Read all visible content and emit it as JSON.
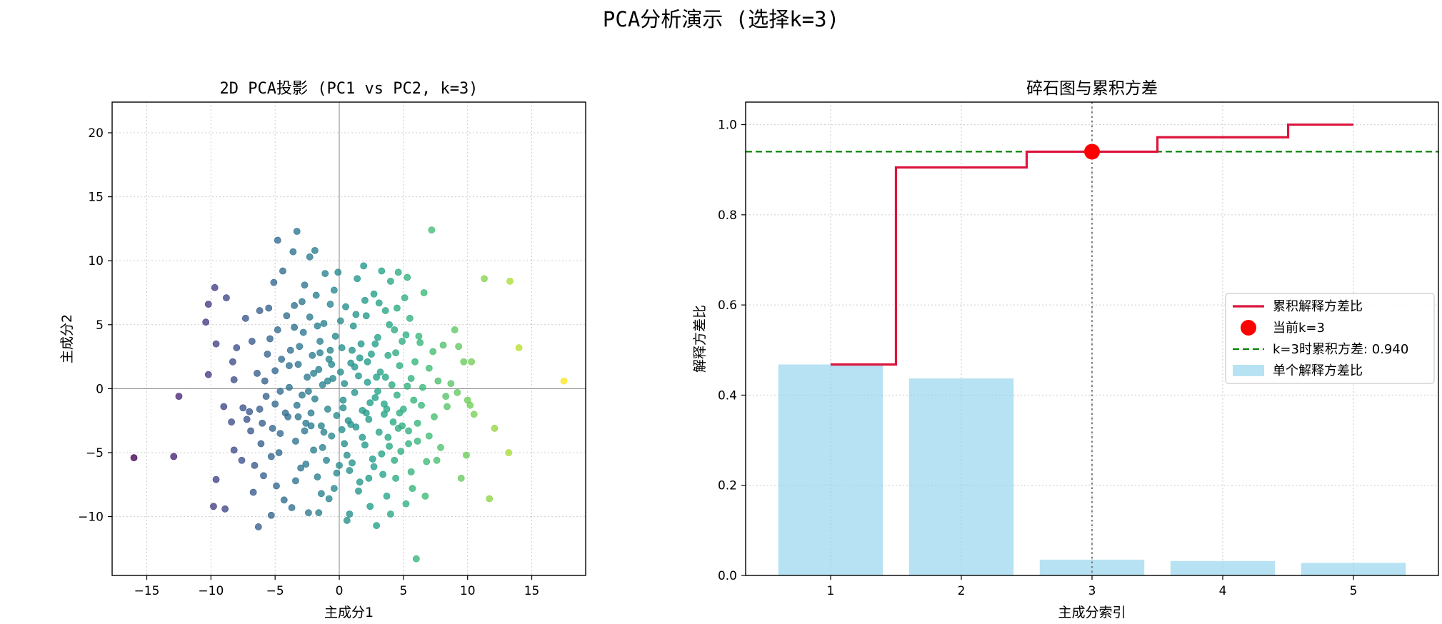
{
  "figure": {
    "suptitle": "PCA分析演示 (选择k=3)"
  },
  "chart_data": [
    {
      "type": "scatter",
      "title": "2D PCA投影 (PC1 vs PC2, k=3)",
      "xlabel": "主成分1",
      "ylabel": "主成分2",
      "xlim": [
        -17.7,
        19.2
      ],
      "ylim": [
        -14.6,
        22.4
      ],
      "xticks": [
        -15,
        -10,
        -5,
        0,
        5,
        10,
        15
      ],
      "yticks": [
        -10,
        -5,
        0,
        5,
        10,
        15,
        20
      ],
      "grid": true,
      "colormap": "viridis (by PC1)",
      "note": "approx. 300 points; values estimated from the plot",
      "points": [
        [
          -16.0,
          -5.4
        ],
        [
          -12.9,
          -5.3
        ],
        [
          -12.5,
          -0.6
        ],
        [
          -9.7,
          7.9
        ],
        [
          -8.8,
          7.1
        ],
        [
          -10.2,
          6.6
        ],
        [
          -10.4,
          5.2
        ],
        [
          -9.6,
          3.5
        ],
        [
          -10.2,
          1.1
        ],
        [
          -9.0,
          -1.4
        ],
        [
          -9.6,
          -7.1
        ],
        [
          -9.8,
          -9.2
        ],
        [
          -8.9,
          -9.4
        ],
        [
          -8.2,
          -4.8
        ],
        [
          -8.4,
          -2.6
        ],
        [
          -8.2,
          0.7
        ],
        [
          -8.3,
          2.1
        ],
        [
          -7.5,
          -1.5
        ],
        [
          -7.2,
          -2.4
        ],
        [
          -7.0,
          -1.8
        ],
        [
          -6.8,
          3.7
        ],
        [
          -6.6,
          -6.0
        ],
        [
          -6.3,
          -10.8
        ],
        [
          -6.1,
          -4.3
        ],
        [
          -6.0,
          -2.7
        ],
        [
          -5.8,
          0.6
        ],
        [
          -5.6,
          2.7
        ],
        [
          -5.5,
          6.3
        ],
        [
          -6.2,
          6.1
        ],
        [
          -5.3,
          -9.9
        ],
        [
          -5.2,
          -3.1
        ],
        [
          -5.0,
          -1.2
        ],
        [
          -5.0,
          1.4
        ],
        [
          -4.8,
          4.6
        ],
        [
          -4.7,
          -5.0
        ],
        [
          -4.6,
          -0.2
        ],
        [
          -4.5,
          2.3
        ],
        [
          -4.4,
          9.2
        ],
        [
          -4.8,
          11.6
        ],
        [
          -4.3,
          -8.7
        ],
        [
          -4.0,
          -2.2
        ],
        [
          -3.9,
          0.1
        ],
        [
          -3.8,
          3.0
        ],
        [
          -3.6,
          10.7
        ],
        [
          -3.5,
          6.5
        ],
        [
          -3.4,
          -4.1
        ],
        [
          -3.3,
          -1.3
        ],
        [
          -3.2,
          1.9
        ],
        [
          -3.3,
          12.3
        ],
        [
          -3.0,
          -6.2
        ],
        [
          -2.9,
          -0.5
        ],
        [
          -2.8,
          4.4
        ],
        [
          -2.7,
          8.1
        ],
        [
          -2.6,
          -2.7
        ],
        [
          -2.5,
          0.9
        ],
        [
          -2.4,
          -9.7
        ],
        [
          -2.3,
          5.6
        ],
        [
          -2.2,
          -1.9
        ],
        [
          -2.3,
          10.3
        ],
        [
          -2.1,
          2.6
        ],
        [
          -2.0,
          -4.8
        ],
        [
          -1.9,
          -0.8
        ],
        [
          -1.8,
          7.3
        ],
        [
          -1.7,
          -6.9
        ],
        [
          -1.6,
          1.5
        ],
        [
          -1.6,
          -9.7
        ],
        [
          -1.5,
          3.7
        ],
        [
          -1.4,
          -2.9
        ],
        [
          -1.3,
          0.3
        ],
        [
          -1.2,
          5.1
        ],
        [
          -1.1,
          9.0
        ],
        [
          -1.0,
          -5.6
        ],
        [
          -0.9,
          -1.6
        ],
        [
          -0.8,
          2.3
        ],
        [
          -0.7,
          6.6
        ],
        [
          -0.6,
          -3.7
        ],
        [
          -0.5,
          0.8
        ],
        [
          -0.4,
          -7.8
        ],
        [
          -0.3,
          4.1
        ],
        [
          -0.2,
          -2.1
        ],
        [
          -0.1,
          9.1
        ],
        [
          0.0,
          -6.0
        ],
        [
          0.1,
          1.3
        ],
        [
          0.2,
          3.2
        ],
        [
          0.3,
          -0.9
        ],
        [
          0.4,
          -4.3
        ],
        [
          0.5,
          6.4
        ],
        [
          0.6,
          -10.3
        ],
        [
          0.7,
          -2.5
        ],
        [
          0.8,
          -9.8
        ],
        [
          0.9,
          2.0
        ],
        [
          1.0,
          -5.8
        ],
        [
          1.1,
          4.9
        ],
        [
          1.2,
          -0.3
        ],
        [
          1.3,
          -3.0
        ],
        [
          1.4,
          8.6
        ],
        [
          1.5,
          1.0
        ],
        [
          1.6,
          -7.3
        ],
        [
          1.7,
          3.5
        ],
        [
          1.8,
          -1.7
        ],
        [
          1.9,
          9.6
        ],
        [
          2.0,
          -4.4
        ],
        [
          2.1,
          5.7
        ],
        [
          2.2,
          0.5
        ],
        [
          2.3,
          -2.4
        ],
        [
          2.4,
          -9.2
        ],
        [
          2.5,
          2.7
        ],
        [
          2.6,
          -5.5
        ],
        [
          2.7,
          7.4
        ],
        [
          2.8,
          -0.7
        ],
        [
          2.9,
          -10.7
        ],
        [
          3.0,
          4.0
        ],
        [
          3.1,
          -3.4
        ],
        [
          3.2,
          1.3
        ],
        [
          3.3,
          9.2
        ],
        [
          3.4,
          -6.7
        ],
        [
          3.5,
          -1.2
        ],
        [
          3.6,
          6.1
        ],
        [
          3.7,
          -8.4
        ],
        [
          3.8,
          2.6
        ],
        [
          3.9,
          -4.5
        ],
        [
          4.0,
          8.4
        ],
        [
          4.1,
          0.3
        ],
        [
          4.2,
          -2.6
        ],
        [
          4.3,
          4.6
        ],
        [
          4.4,
          -7.0
        ],
        [
          4.5,
          -0.5
        ],
        [
          4.6,
          9.1
        ],
        [
          4.7,
          1.8
        ],
        [
          4.8,
          -4.9
        ],
        [
          4.9,
          3.7
        ],
        [
          5.0,
          -1.6
        ],
        [
          5.1,
          7.1
        ],
        [
          5.2,
          -9.0
        ],
        [
          5.3,
          0.2
        ],
        [
          5.4,
          -3.3
        ],
        [
          5.5,
          5.5
        ],
        [
          5.6,
          -6.5
        ],
        [
          5.8,
          -0.9
        ],
        [
          5.9,
          2.1
        ],
        [
          6.0,
          -13.3
        ],
        [
          6.1,
          -4.1
        ],
        [
          6.2,
          4.1
        ],
        [
          6.4,
          -1.3
        ],
        [
          6.6,
          7.5
        ],
        [
          6.8,
          -5.7
        ],
        [
          7.0,
          1.6
        ],
        [
          7.2,
          12.4
        ],
        [
          7.4,
          -2.2
        ],
        [
          7.7,
          0.6
        ],
        [
          7.9,
          -4.6
        ],
        [
          8.1,
          3.4
        ],
        [
          8.4,
          -1.4
        ],
        [
          8.7,
          0.4
        ],
        [
          9.0,
          4.6
        ],
        [
          9.2,
          -0.3
        ],
        [
          9.5,
          -7.0
        ],
        [
          9.7,
          2.1
        ],
        [
          9.9,
          -5.2
        ],
        [
          10.0,
          -0.9
        ],
        [
          10.2,
          -1.3
        ],
        [
          10.3,
          2.1
        ],
        [
          10.5,
          -2.0
        ],
        [
          11.3,
          8.6
        ],
        [
          11.7,
          -8.6
        ],
        [
          12.1,
          -3.1
        ],
        [
          13.2,
          -5.0
        ],
        [
          13.3,
          8.4
        ],
        [
          14.0,
          3.2
        ],
        [
          17.5,
          0.6
        ],
        [
          -7.3,
          5.5
        ],
        [
          -6.9,
          -3.3
        ],
        [
          -6.4,
          1.2
        ],
        [
          -5.9,
          -6.8
        ],
        [
          -5.4,
          3.9
        ],
        [
          -4.9,
          -7.6
        ],
        [
          -4.1,
          5.7
        ],
        [
          -3.7,
          -9.3
        ],
        [
          -3.1,
          3.3
        ],
        [
          -2.6,
          -5.9
        ],
        [
          -1.9,
          10.8
        ],
        [
          -1.3,
          -4.6
        ],
        [
          -0.8,
          -8.6
        ],
        [
          -0.4,
          7.7
        ],
        [
          0.3,
          -1.5
        ],
        [
          0.6,
          -5.2
        ],
        [
          1.0,
          3.0
        ],
        [
          1.5,
          -8.0
        ],
        [
          2.0,
          6.9
        ],
        [
          2.4,
          -1.1
        ],
        [
          2.8,
          3.5
        ],
        [
          3.3,
          -5.1
        ],
        [
          3.6,
          0.9
        ],
        [
          4.0,
          -9.8
        ],
        [
          4.4,
          2.8
        ],
        [
          4.9,
          -2.9
        ],
        [
          5.3,
          8.7
        ],
        [
          5.7,
          -7.8
        ],
        [
          6.3,
          3.6
        ],
        [
          7.0,
          -3.7
        ],
        [
          -8.0,
          3.2
        ],
        [
          -7.6,
          -5.6
        ],
        [
          -6.7,
          -8.1
        ],
        [
          -5.7,
          -0.6
        ],
        [
          -5.1,
          8.3
        ],
        [
          -4.6,
          -3.5
        ],
        [
          -3.9,
          1.8
        ],
        [
          -3.4,
          -7.2
        ],
        [
          -2.9,
          6.8
        ],
        [
          -2.4,
          -0.2
        ],
        [
          -1.7,
          4.9
        ],
        [
          -1.2,
          -3.4
        ],
        [
          -0.6,
          1.9
        ],
        [
          -0.2,
          -6.6
        ],
        [
          0.4,
          0.4
        ],
        [
          0.9,
          -2.8
        ],
        [
          1.3,
          5.8
        ],
        [
          1.8,
          -3.8
        ],
        [
          2.2,
          2.1
        ],
        [
          2.7,
          -6.1
        ],
        [
          3.1,
          6.7
        ],
        [
          3.5,
          -2.0
        ],
        [
          3.9,
          5.0
        ],
        [
          4.3,
          -5.6
        ],
        [
          4.7,
          -1.9
        ],
        [
          5.2,
          4.2
        ],
        [
          5.6,
          0.8
        ],
        [
          6.1,
          -2.7
        ],
        [
          6.7,
          -8.4
        ],
        [
          7.3,
          2.9
        ],
        [
          -6.2,
          -1.6
        ],
        [
          -5.3,
          -5.3
        ],
        [
          -4.2,
          -1.9
        ],
        [
          -3.5,
          4.8
        ],
        [
          -2.7,
          -3.3
        ],
        [
          -2.0,
          1.2
        ],
        [
          -1.4,
          -8.2
        ],
        [
          -0.7,
          3.0
        ],
        [
          0.1,
          5.3
        ],
        [
          0.8,
          -6.4
        ],
        [
          1.6,
          2.4
        ],
        [
          2.3,
          -7.0
        ],
        [
          3.0,
          -0.2
        ],
        [
          3.8,
          -3.8
        ],
        [
          4.5,
          6.3
        ],
        [
          5.4,
          -4.3
        ],
        [
          6.5,
          0.1
        ],
        [
          7.6,
          -5.6
        ],
        [
          8.3,
          -0.6
        ],
        [
          9.3,
          3.3
        ],
        [
          -3.2,
          -2.2
        ],
        [
          -2.2,
          -2.9
        ],
        [
          -1.5,
          2.8
        ],
        [
          -0.9,
          0.6
        ],
        [
          0.2,
          -3.2
        ],
        [
          1.2,
          1.7
        ],
        [
          2.1,
          -1.9
        ],
        [
          2.9,
          0.9
        ],
        [
          3.7,
          -1.6
        ],
        [
          4.6,
          -3.1
        ]
      ]
    },
    {
      "type": "bar+step",
      "title": "碎石图与累积方差",
      "xlabel": "主成分索引",
      "ylabel": "解释方差比",
      "xlim": [
        0.35,
        5.65
      ],
      "ylim": [
        0.0,
        1.05
      ],
      "categories": [
        "1",
        "2",
        "3",
        "4",
        "5"
      ],
      "yticks": [
        "0.0",
        "0.2",
        "0.4",
        "0.6",
        "0.8",
        "1.0"
      ],
      "grid": true,
      "series": [
        {
          "name": "单个解释方差比",
          "kind": "bar",
          "color": "#87CEEB",
          "values": [
            0.468,
            0.437,
            0.035,
            0.032,
            0.028
          ]
        },
        {
          "name": "累积解释方差比",
          "kind": "step",
          "color": "#DC143C",
          "values": [
            0.468,
            0.905,
            0.94,
            0.972,
            1.0
          ]
        }
      ],
      "marker": {
        "name": "当前k=3",
        "x": 3,
        "y": 0.94,
        "color": "#FF0000"
      },
      "hline": {
        "name": "k=3时累积方差: 0.940",
        "y": 0.94,
        "color": "#008000",
        "style": "dashed"
      },
      "vline": {
        "x": 3,
        "color": "#808080",
        "style": "dotted"
      },
      "legend": {
        "position": "center-right",
        "entries": [
          "累积解释方差比",
          "当前k=3",
          "k=3时累积方差: 0.940",
          "单个解释方差比"
        ]
      }
    }
  ]
}
